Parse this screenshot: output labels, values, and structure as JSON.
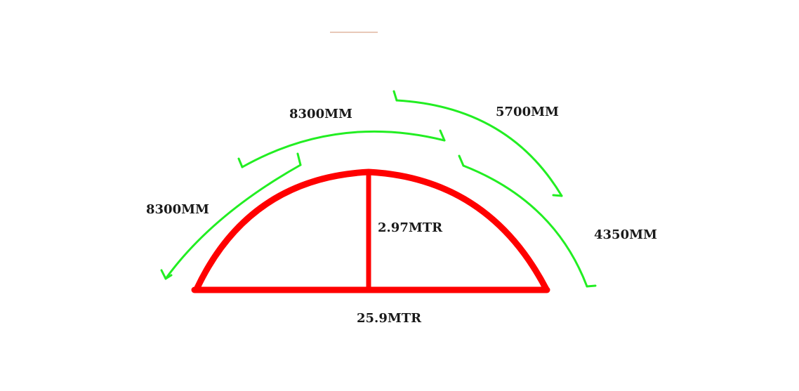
{
  "diagram": {
    "colors": {
      "structure": "#ff0000",
      "segment": "#22ee22",
      "text": "#1a1a1a",
      "accent_line": "#e8c8b8"
    },
    "base_label": "25.9MTR",
    "rise_label": "2.97MTR",
    "segments": [
      {
        "label": "8300MM"
      },
      {
        "label": "8300MM"
      },
      {
        "label": "5700MM"
      },
      {
        "label": "4350MM"
      }
    ]
  }
}
